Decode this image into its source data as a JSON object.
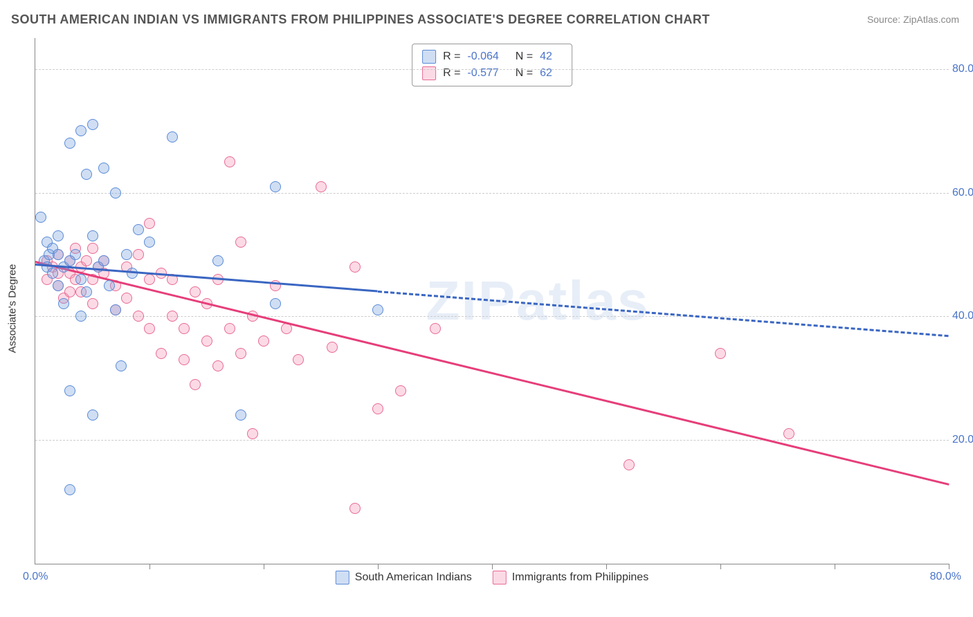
{
  "title": "SOUTH AMERICAN INDIAN VS IMMIGRANTS FROM PHILIPPINES ASSOCIATE'S DEGREE CORRELATION CHART",
  "source": "Source: ZipAtlas.com",
  "watermark": "ZIPatlas",
  "yaxis_title": "Associate's Degree",
  "background_color": "#ffffff",
  "grid_color": "#cccccc",
  "axis_color": "#888888",
  "tick_label_color": "#4a74c9",
  "tick_label_fontsize": 16,
  "title_fontsize": 18,
  "title_color": "#555555",
  "xlim": [
    0,
    80
  ],
  "ylim": [
    0,
    85
  ],
  "xticks": [
    0,
    10,
    20,
    30,
    40,
    50,
    60,
    70,
    80
  ],
  "xtick_labels": {
    "min": "0.0%",
    "max": "80.0%"
  },
  "yticks": [
    20,
    40,
    60,
    80
  ],
  "ytick_labels": [
    "20.0%",
    "40.0%",
    "60.0%",
    "80.0%"
  ],
  "point_radius": 8,
  "point_border_width": 1.5,
  "series": {
    "blue": {
      "label": "South American Indians",
      "fill": "rgba(120,160,220,0.35)",
      "stroke": "#5a8bd8",
      "R": "-0.064",
      "N": "42",
      "line_color": "#3a66c2",
      "line_width": 3,
      "line_solid_xmax": 30,
      "line_y_at_x0": 48.5,
      "line_y_at_xmax": 37,
      "data": [
        [
          0.5,
          56
        ],
        [
          0.8,
          49
        ],
        [
          1,
          52
        ],
        [
          1,
          48
        ],
        [
          1.2,
          50
        ],
        [
          1.5,
          47
        ],
        [
          1.5,
          51
        ],
        [
          2,
          50
        ],
        [
          2,
          45
        ],
        [
          2,
          53
        ],
        [
          2.5,
          48
        ],
        [
          2.5,
          42
        ],
        [
          3,
          68
        ],
        [
          3,
          49
        ],
        [
          3,
          28
        ],
        [
          3,
          12
        ],
        [
          3.5,
          50
        ],
        [
          4,
          70
        ],
        [
          4,
          46
        ],
        [
          4,
          40
        ],
        [
          4.5,
          63
        ],
        [
          4.5,
          44
        ],
        [
          5,
          71
        ],
        [
          5,
          53
        ],
        [
          5,
          24
        ],
        [
          5.5,
          48
        ],
        [
          6,
          64
        ],
        [
          6,
          49
        ],
        [
          6.5,
          45
        ],
        [
          7,
          60
        ],
        [
          7,
          41
        ],
        [
          7.5,
          32
        ],
        [
          8,
          50
        ],
        [
          8.5,
          47
        ],
        [
          9,
          54
        ],
        [
          10,
          52
        ],
        [
          12,
          69
        ],
        [
          16,
          49
        ],
        [
          18,
          24
        ],
        [
          21,
          61
        ],
        [
          21,
          42
        ],
        [
          30,
          41
        ]
      ]
    },
    "pink": {
      "label": "Immigrants from Philippines",
      "fill": "rgba(245,150,180,0.35)",
      "stroke": "#e86b94",
      "R": "-0.577",
      "N": "62",
      "line_color": "#e63e7a",
      "line_width": 3,
      "line_solid_xmax": 80,
      "line_y_at_x0": 49,
      "line_y_at_xmax": 13,
      "data": [
        [
          1,
          49
        ],
        [
          1,
          46
        ],
        [
          1.5,
          48
        ],
        [
          2,
          47
        ],
        [
          2,
          45
        ],
        [
          2,
          50
        ],
        [
          2.5,
          43
        ],
        [
          3,
          49
        ],
        [
          3,
          47
        ],
        [
          3,
          44
        ],
        [
          3.5,
          46
        ],
        [
          3.5,
          51
        ],
        [
          4,
          48
        ],
        [
          4,
          44
        ],
        [
          4.5,
          49
        ],
        [
          5,
          51
        ],
        [
          5,
          46
        ],
        [
          5,
          42
        ],
        [
          5.5,
          48
        ],
        [
          6,
          47
        ],
        [
          6,
          49
        ],
        [
          7,
          45
        ],
        [
          7,
          41
        ],
        [
          8,
          48
        ],
        [
          8,
          43
        ],
        [
          9,
          50
        ],
        [
          9,
          40
        ],
        [
          10,
          55
        ],
        [
          10,
          46
        ],
        [
          10,
          38
        ],
        [
          11,
          47
        ],
        [
          11,
          34
        ],
        [
          12,
          46
        ],
        [
          12,
          40
        ],
        [
          13,
          38
        ],
        [
          13,
          33
        ],
        [
          14,
          44
        ],
        [
          14,
          29
        ],
        [
          15,
          42
        ],
        [
          15,
          36
        ],
        [
          16,
          46
        ],
        [
          16,
          32
        ],
        [
          17,
          65
        ],
        [
          17,
          38
        ],
        [
          18,
          52
        ],
        [
          18,
          34
        ],
        [
          19,
          40
        ],
        [
          19,
          21
        ],
        [
          20,
          36
        ],
        [
          21,
          45
        ],
        [
          22,
          38
        ],
        [
          23,
          33
        ],
        [
          25,
          61
        ],
        [
          26,
          35
        ],
        [
          28,
          48
        ],
        [
          28,
          9
        ],
        [
          30,
          25
        ],
        [
          32,
          28
        ],
        [
          35,
          38
        ],
        [
          52,
          16
        ],
        [
          60,
          34
        ],
        [
          66,
          21
        ]
      ]
    }
  },
  "top_legend_rows": [
    {
      "series": "blue",
      "R_label": "R =",
      "N_label": "N ="
    },
    {
      "series": "pink",
      "R_label": "R =",
      "N_label": "N ="
    }
  ]
}
